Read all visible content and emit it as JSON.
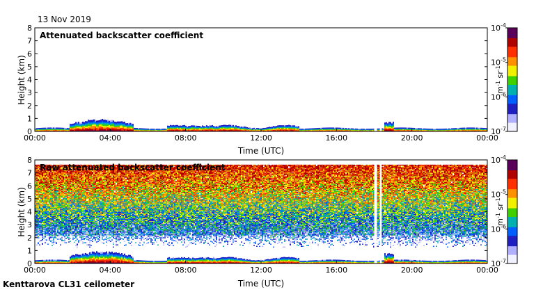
{
  "date_label": "13 Nov 2019",
  "footer_label": "Kenttarova CL31 ceilometer",
  "chart_data": [
    {
      "type": "heatmap",
      "title": "Attenuated backscatter coefficient",
      "xlabel": "Time (UTC)",
      "ylabel": "Height (km)",
      "x_ticks": [
        "00:00",
        "04:00",
        "08:00",
        "12:00",
        "16:00",
        "20:00",
        "00:00"
      ],
      "y_ticks": [
        "0",
        "1",
        "2",
        "3",
        "4",
        "5",
        "6",
        "7",
        "8"
      ],
      "ylim": [
        0,
        8
      ],
      "xlim_hours": [
        0,
        24
      ],
      "colorbar": {
        "scale": "log",
        "ticks": [
          "10-4",
          "10-5",
          "10-6",
          "10-7"
        ],
        "unit": "m-1 sr-1",
        "colors": [
          "#5a005a",
          "#b00000",
          "#ff3000",
          "#ff9000",
          "#f0f000",
          "#40d000",
          "#00b0b0",
          "#0060ff",
          "#2020c0",
          "#b0b0ff",
          "#f0f0ff"
        ]
      },
      "gaps_hours": [
        [
          18.0,
          18.15
        ],
        [
          18.3,
          18.4
        ]
      ]
    },
    {
      "type": "heatmap",
      "title": "Raw attenuated backscatter coefficient",
      "xlabel": "Time (UTC)",
      "ylabel": "Height (km)",
      "x_ticks": [
        "00:00",
        "04:00",
        "08:00",
        "12:00",
        "16:00",
        "20:00",
        "00:00"
      ],
      "y_ticks": [
        "0",
        "1",
        "2",
        "3",
        "4",
        "5",
        "6",
        "7",
        "8"
      ],
      "ylim": [
        0,
        8
      ],
      "xlim_hours": [
        0,
        24
      ],
      "colorbar": {
        "scale": "log",
        "ticks": [
          "10-4",
          "10-5",
          "10-6",
          "10-7"
        ],
        "unit": "m-1 sr-1",
        "colors": [
          "#5a005a",
          "#b00000",
          "#ff3000",
          "#ff9000",
          "#f0f000",
          "#40d000",
          "#00b0b0",
          "#0060ff",
          "#2020c0",
          "#b0b0ff",
          "#f0f0ff"
        ]
      },
      "gaps_hours": [
        [
          18.0,
          18.15
        ],
        [
          18.3,
          18.4
        ]
      ]
    }
  ]
}
